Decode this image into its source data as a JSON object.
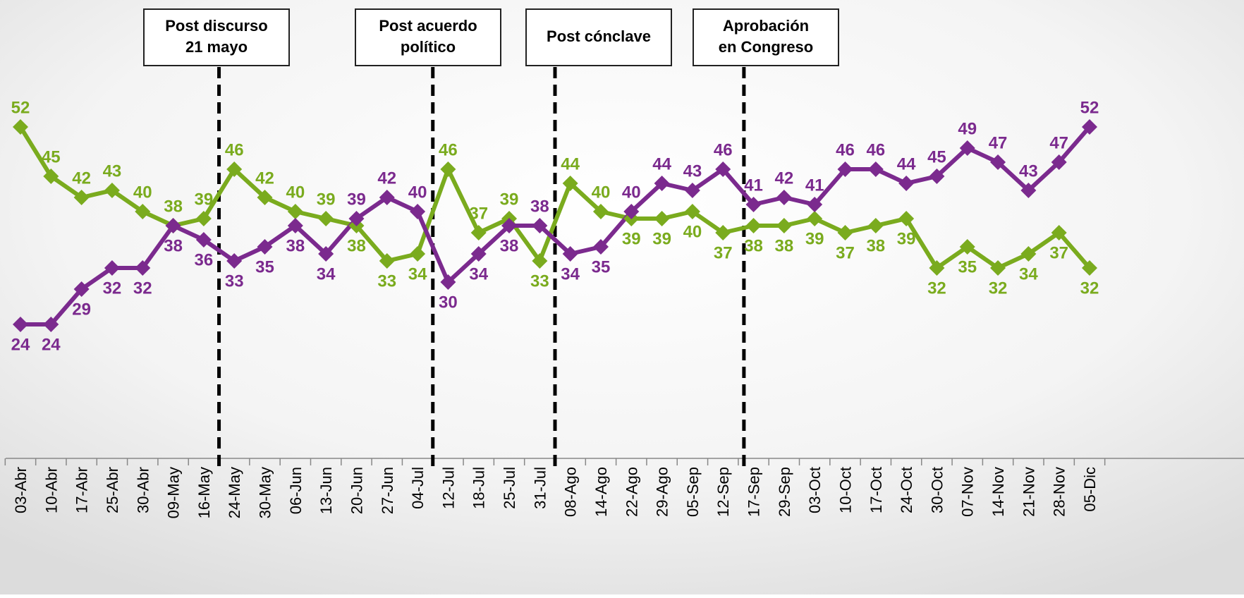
{
  "chart_data": {
    "type": "line",
    "categories": [
      "03-Abr",
      "10-Abr",
      "17-Abr",
      "25-Abr",
      "30-Abr",
      "09-May",
      "16-May",
      "24-May",
      "30-May",
      "06-Jun",
      "13-Jun",
      "20-Jun",
      "27-Jun",
      "04-Jul",
      "12-Jul",
      "18-Jul",
      "25-Jul",
      "31-Jul",
      "08-Ago",
      "14-Ago",
      "22-Ago",
      "29-Ago",
      "05-Sep",
      "12-Sep",
      "17-Sep",
      "29-Sep",
      "03-Oct",
      "10-Oct",
      "17-Oct",
      "24-Oct",
      "30-Oct",
      "07-Nov",
      "14-Nov",
      "21-Nov",
      "28-Nov",
      "05-Dic"
    ],
    "series": [
      {
        "color": "#7aab1e",
        "values": [
          52,
          45,
          42,
          43,
          40,
          38,
          39,
          46,
          42,
          40,
          39,
          38,
          33,
          34,
          46,
          37,
          39,
          33,
          44,
          40,
          39,
          39,
          40,
          37,
          38,
          38,
          39,
          37,
          38,
          39,
          32,
          35,
          32,
          34,
          37,
          32
        ]
      },
      {
        "color": "#7b2a8e",
        "values": [
          24,
          24,
          29,
          32,
          32,
          38,
          36,
          33,
          35,
          38,
          34,
          39,
          42,
          40,
          30,
          34,
          38,
          38,
          34,
          35,
          40,
          44,
          43,
          46,
          41,
          42,
          41,
          46,
          46,
          44,
          45,
          49,
          47,
          43,
          47,
          52
        ]
      }
    ],
    "ylim": [
      5,
      70
    ],
    "annotations": [
      {
        "lines": [
          "Post discurso",
          "21 mayo"
        ],
        "after": "16-May"
      },
      {
        "lines": [
          "Post acuerdo",
          "político"
        ],
        "after": "04-Jul"
      },
      {
        "lines": [
          "Post cónclave"
        ],
        "after": "31-Jul"
      },
      {
        "lines": [
          "Aprobación",
          "en Congreso"
        ],
        "after": "12-Sep"
      }
    ]
  }
}
